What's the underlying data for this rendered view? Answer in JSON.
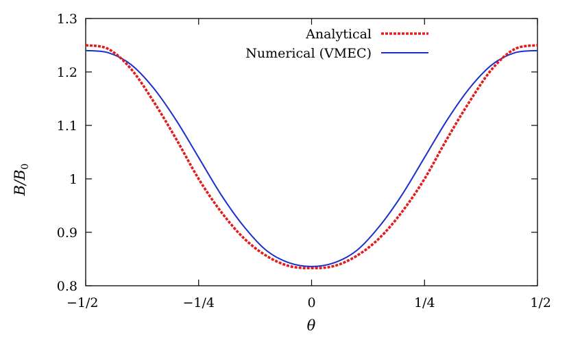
{
  "chart_data": {
    "type": "line",
    "title": "",
    "xlabel": "θ",
    "ylabel": "B/B",
    "ylabel_subscript": "0",
    "xlim": [
      -0.5,
      0.5
    ],
    "ylim": [
      0.8,
      1.3
    ],
    "x_ticks": [
      {
        "value": -0.5,
        "label": "−1/2"
      },
      {
        "value": -0.25,
        "label": "−1/4"
      },
      {
        "value": 0,
        "label": "0"
      },
      {
        "value": 0.25,
        "label": "1/4"
      },
      {
        "value": 0.5,
        "label": "1/2"
      }
    ],
    "y_ticks": [
      {
        "value": 0.8,
        "label": "0.8"
      },
      {
        "value": 0.9,
        "label": "0.9"
      },
      {
        "value": 1.0,
        "label": "1"
      },
      {
        "value": 1.1,
        "label": "1.1"
      },
      {
        "value": 1.2,
        "label": "1.2"
      },
      {
        "value": 1.3,
        "label": "1.3"
      }
    ],
    "grid": false,
    "legend_position": "top-right",
    "x": [
      -0.5,
      -0.45,
      -0.4,
      -0.35,
      -0.3,
      -0.25,
      -0.2,
      -0.15,
      -0.1,
      -0.05,
      0,
      0.05,
      0.1,
      0.15,
      0.2,
      0.25,
      0.3,
      0.35,
      0.4,
      0.45,
      0.5
    ],
    "series": [
      {
        "name": "Analytical",
        "color": "#e41a1c",
        "style": "dotted",
        "values": [
          1.25,
          1.243,
          1.206,
          1.145,
          1.075,
          1.0,
          0.938,
          0.889,
          0.856,
          0.837,
          0.833,
          0.837,
          0.856,
          0.889,
          0.938,
          1.0,
          1.075,
          1.145,
          1.206,
          1.243,
          1.25
        ]
      },
      {
        "name": "Numerical (VMEC)",
        "color": "#1a2ecf",
        "style": "solid",
        "values": [
          1.24,
          1.236,
          1.214,
          1.17,
          1.11,
          1.04,
          0.97,
          0.911,
          0.866,
          0.843,
          0.836,
          0.843,
          0.866,
          0.911,
          0.97,
          1.04,
          1.11,
          1.17,
          1.214,
          1.236,
          1.24
        ]
      }
    ]
  }
}
